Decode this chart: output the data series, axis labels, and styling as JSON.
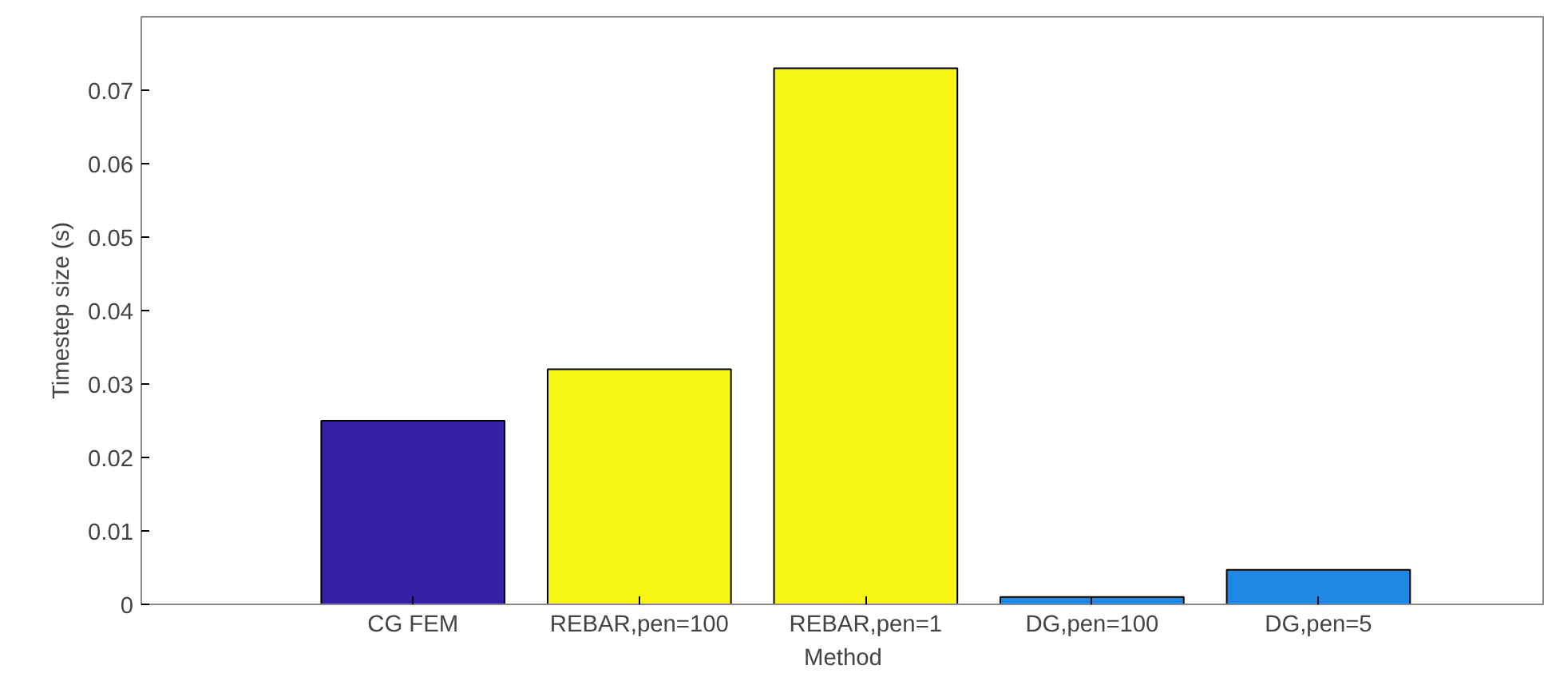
{
  "chart_data": {
    "type": "bar",
    "xlabel": "Method",
    "ylabel": "Timestep size (s)",
    "categories": [
      "CG FEM",
      "REBAR,pen=100",
      "REBAR,pen=1",
      "DG,pen=100",
      "DG,pen=5"
    ],
    "values": [
      0.025,
      0.032,
      0.073,
      0.001,
      0.0047
    ],
    "colors": [
      "#3720a6",
      "#f7f713",
      "#f7f713",
      "#1e88e5",
      "#1e88e5"
    ],
    "ylim": [
      0,
      0.08
    ],
    "yticks": [
      0,
      0.01,
      0.02,
      0.03,
      0.04,
      0.05,
      0.06,
      0.07
    ],
    "grid": false
  }
}
